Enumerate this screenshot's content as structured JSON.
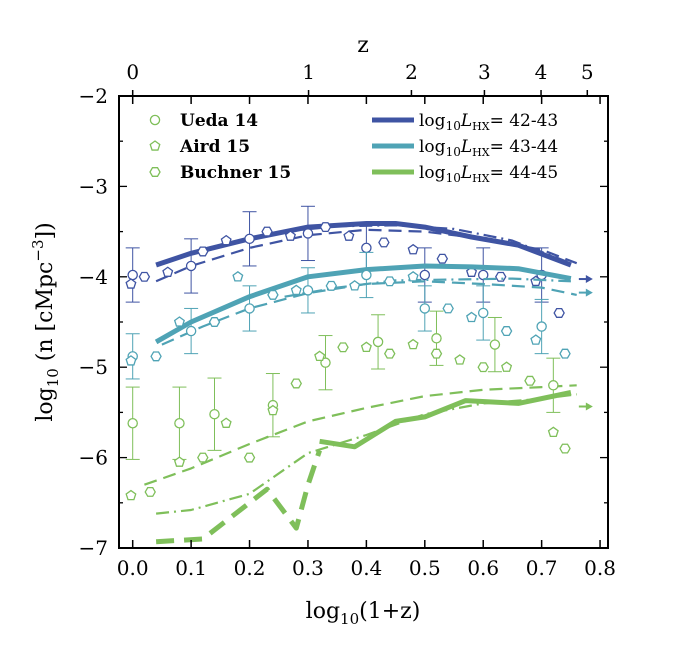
{
  "chart_data": {
    "type": "line",
    "title": "",
    "xlabel": "log10(1+z)",
    "ylabel": "log10 (n [cMpc^-3])",
    "top_xlabel": "z",
    "xlim": [
      -0.02,
      0.8
    ],
    "ylim": [
      -7,
      -2
    ],
    "x_ticks": [
      "0.0",
      "0.1",
      "0.2",
      "0.3",
      "0.4",
      "0.5",
      "0.6",
      "0.7",
      "0.8"
    ],
    "x_tick_values": [
      0.0,
      0.1,
      0.2,
      0.3,
      0.4,
      0.5,
      0.6,
      0.7,
      0.8
    ],
    "y_ticks": [
      "−2",
      "−3",
      "−4",
      "−5",
      "−6",
      "−7"
    ],
    "y_tick_values": [
      -2,
      -3,
      -4,
      -5,
      -6,
      -7
    ],
    "top_ticks": [
      {
        "label": "0",
        "z": 0
      },
      {
        "label": "1",
        "z": 1
      },
      {
        "label": "2",
        "z": 2
      },
      {
        "label": "3",
        "z": 3
      },
      {
        "label": "4",
        "z": 4
      },
      {
        "label": "5",
        "z": 5
      }
    ],
    "legend_markers": [
      {
        "label": "Ueda 14",
        "marker": "circle"
      },
      {
        "label": "Aird 15",
        "marker": "pentagon"
      },
      {
        "label": "Buchner 15",
        "marker": "hexagon"
      }
    ],
    "legend_lines": [
      {
        "prefix": "log",
        "sub": "10",
        "italic": "L",
        "isub": "HX",
        "suffix": "= 42-43",
        "color": "#3f54a3"
      },
      {
        "prefix": "log",
        "sub": "10",
        "italic": "L",
        "isub": "HX",
        "suffix": "= 43-44",
        "color": "#4fa3b5"
      },
      {
        "prefix": "log",
        "sub": "10",
        "italic": "L",
        "isub": "HX",
        "suffix": "= 44-45",
        "color": "#7fbf5a"
      }
    ],
    "series": [
      {
        "name": "42-43",
        "color": "#3f54a3",
        "solid": {
          "x": [
            0.04,
            0.1,
            0.2,
            0.3,
            0.4,
            0.45,
            0.5,
            0.58,
            0.66,
            0.75
          ],
          "y": [
            -3.87,
            -3.74,
            -3.58,
            -3.45,
            -3.41,
            -3.41,
            -3.45,
            -3.56,
            -3.65,
            -3.87
          ]
        },
        "dashed": {
          "x": [
            0.04,
            0.1,
            0.2,
            0.3,
            0.4,
            0.5,
            0.6,
            0.7,
            0.76
          ],
          "y": [
            -4.05,
            -3.88,
            -3.68,
            -3.54,
            -3.48,
            -3.5,
            -3.58,
            -3.7,
            -3.85
          ]
        },
        "dashdot": {
          "x": [
            0.26,
            0.35,
            0.45,
            0.55,
            0.65,
            0.75
          ],
          "y": [
            -3.5,
            -3.44,
            -3.43,
            -3.47,
            -3.6,
            -3.85
          ]
        },
        "ueda": {
          "x": [
            0.0,
            0.1,
            0.2,
            0.3,
            0.4,
            0.5,
            0.6,
            0.7
          ],
          "y": [
            -3.98,
            -3.88,
            -3.58,
            -3.52,
            -3.68,
            -3.98,
            -3.98,
            -3.98
          ],
          "err": [
            0.3,
            0.3,
            0.3,
            0.3,
            0.25,
            0.3,
            0.3,
            0.3
          ]
        },
        "aird": {
          "x": [
            -0.003,
            0.06,
            0.16,
            0.27,
            0.37,
            0.48,
            0.58,
            0.69
          ],
          "y": [
            -4.08,
            -3.95,
            -3.6,
            -3.55,
            -3.55,
            -3.7,
            -3.95,
            -4.05
          ]
        },
        "buchner": {
          "x": [
            0.02,
            0.12,
            0.23,
            0.33,
            0.43,
            0.53,
            0.63,
            0.73
          ],
          "y": [
            -4.0,
            -3.72,
            -3.5,
            -3.45,
            -3.62,
            -3.8,
            -4.0,
            -4.4
          ]
        }
      },
      {
        "name": "43-44",
        "color": "#4fa3b5",
        "solid": {
          "x": [
            0.04,
            0.1,
            0.2,
            0.3,
            0.4,
            0.5,
            0.58,
            0.66,
            0.75
          ],
          "y": [
            -4.72,
            -4.5,
            -4.22,
            -4.0,
            -3.92,
            -3.88,
            -3.89,
            -3.91,
            -4.02
          ]
        },
        "dashed": {
          "x": [
            0.05,
            0.12,
            0.2,
            0.3,
            0.4,
            0.5,
            0.6,
            0.7,
            0.76
          ],
          "y": [
            -4.75,
            -4.55,
            -4.35,
            -4.18,
            -4.08,
            -4.05,
            -4.08,
            -4.12,
            -4.2
          ]
        },
        "dashdot": {
          "x": [
            0.26,
            0.35,
            0.45,
            0.55,
            0.65,
            0.75
          ],
          "y": [
            -4.22,
            -4.12,
            -4.04,
            -4.03,
            -4.02,
            -4.05
          ]
        },
        "ueda": {
          "x": [
            0.0,
            0.1,
            0.2,
            0.3,
            0.4,
            0.5,
            0.6,
            0.7
          ],
          "y": [
            -4.88,
            -4.6,
            -4.35,
            -4.15,
            -3.98,
            -4.35,
            -4.4,
            -4.55
          ],
          "err": [
            0.25,
            0.25,
            0.25,
            0.25,
            0.25,
            0.25,
            0.3,
            0.3
          ]
        },
        "aird": {
          "x": [
            -0.003,
            0.08,
            0.18,
            0.28,
            0.38,
            0.48,
            0.58,
            0.69
          ],
          "y": [
            -4.93,
            -4.5,
            -4.0,
            -4.15,
            -4.1,
            -4.0,
            -4.45,
            -4.7
          ]
        },
        "buchner": {
          "x": [
            0.04,
            0.14,
            0.24,
            0.34,
            0.44,
            0.54,
            0.64,
            0.74
          ],
          "y": [
            -4.88,
            -4.5,
            -4.2,
            -4.1,
            -4.05,
            -4.35,
            -4.6,
            -4.85
          ]
        }
      },
      {
        "name": "44-45",
        "color": "#7fbf5a",
        "solid": {
          "x": [
            0.32,
            0.38,
            0.45,
            0.5,
            0.57,
            0.66,
            0.75
          ],
          "y": [
            -5.82,
            -5.88,
            -5.6,
            -5.55,
            -5.37,
            -5.4,
            -5.28
          ]
        },
        "dashed": {
          "x": [
            0.02,
            0.1,
            0.2,
            0.3,
            0.4,
            0.5,
            0.6,
            0.7,
            0.76
          ],
          "y": [
            -6.3,
            -6.12,
            -5.85,
            -5.6,
            -5.45,
            -5.32,
            -5.25,
            -5.22,
            -5.2
          ]
        },
        "dashdot": {
          "x": [
            0.04,
            0.1,
            0.2,
            0.3,
            0.4,
            0.5,
            0.6,
            0.7,
            0.76
          ],
          "y": [
            -6.62,
            -6.58,
            -6.4,
            -5.95,
            -5.75,
            -5.52,
            -5.4,
            -5.35,
            -5.3
          ]
        },
        "thickdashed": {
          "x": [
            0.04,
            0.12,
            0.18,
            0.23,
            0.28,
            0.3,
            0.32
          ],
          "y": [
            -6.93,
            -6.9,
            -6.6,
            -6.35,
            -6.78,
            -6.3,
            -5.92
          ]
        },
        "ueda": {
          "x": [
            0.0,
            0.08,
            0.14,
            0.24,
            0.33,
            0.42,
            0.52,
            0.62,
            0.72
          ],
          "y": [
            -5.62,
            -5.62,
            -5.52,
            -5.42,
            -4.95,
            -4.72,
            -4.68,
            -4.75,
            -5.2
          ],
          "err": [
            0.4,
            0.4,
            0.4,
            0.35,
            0.3,
            0.3,
            0.3,
            0.3,
            0.3
          ]
        },
        "aird": {
          "x": [
            -0.003,
            0.08,
            0.16,
            0.24,
            0.32,
            0.4,
            0.48,
            0.56,
            0.64,
            0.72
          ],
          "y": [
            -6.42,
            -6.05,
            -5.62,
            -5.48,
            -4.88,
            -4.78,
            -4.75,
            -4.92,
            -5.0,
            -5.72
          ]
        },
        "buchner": {
          "x": [
            0.03,
            0.12,
            0.2,
            0.28,
            0.36,
            0.44,
            0.52,
            0.6,
            0.68,
            0.74
          ],
          "y": [
            -6.38,
            -6.0,
            -6.0,
            -5.18,
            -4.78,
            -4.85,
            -4.85,
            -5.0,
            -5.15,
            -5.9
          ]
        }
      }
    ]
  }
}
